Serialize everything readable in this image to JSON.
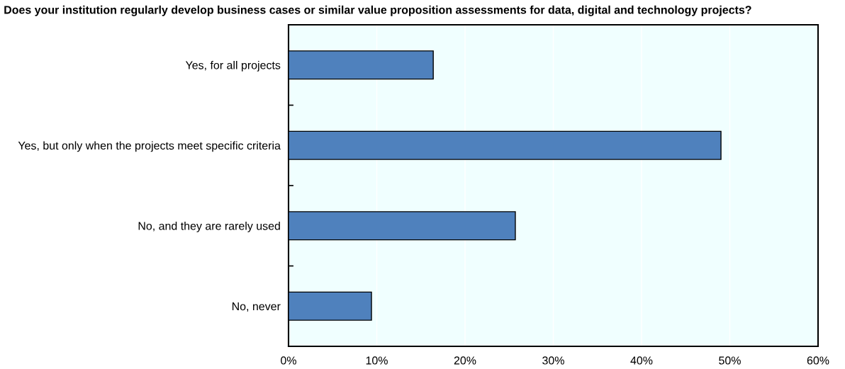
{
  "chart_data": {
    "type": "bar",
    "orientation": "horizontal",
    "title": "Does your institution regularly develop business cases or similar value proposition assessments for data, digital and technology projects?",
    "categories": [
      "Yes, for all projects",
      "Yes, but only when the projects meet specific criteria",
      "No, and they are rarely used",
      "No, never"
    ],
    "values": [
      16.4,
      49.0,
      25.7,
      9.4
    ],
    "color": "#4f81bd",
    "xlim": [
      0,
      60
    ],
    "xticks": [
      {
        "value": 0,
        "label": "0%"
      },
      {
        "value": 10,
        "label": "10%"
      },
      {
        "value": 20,
        "label": "20%"
      },
      {
        "value": 30,
        "label": "30%"
      },
      {
        "value": 40,
        "label": "40%"
      },
      {
        "value": 50,
        "label": "50%"
      },
      {
        "value": 60,
        "label": "60%"
      }
    ],
    "grid": "x"
  }
}
